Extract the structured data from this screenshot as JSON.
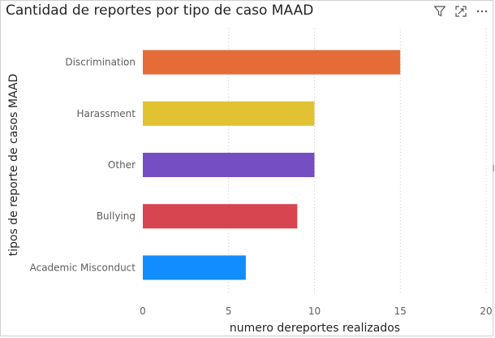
{
  "header": {
    "title": "Cantidad de reportes por tipo de caso MAAD",
    "icons": [
      "filter-icon",
      "focus-mode-icon",
      "more-options-icon"
    ]
  },
  "colors": {
    "Discrimination": "#E66C37",
    "Harassment": "#E1C233",
    "Other": "#744EC2",
    "Bullying": "#D64550",
    "Academic Misconduct": "#118DFF",
    "gridline": "#c8c8c8",
    "tick_text": "#605E5C",
    "axis_title": "#252423"
  },
  "chart_data": {
    "type": "bar",
    "orientation": "horizontal",
    "title": "Cantidad de reportes por tipo de caso MAAD",
    "xlabel": "numero dereportes realizados",
    "ylabel": "tipos de reporte de casos MAAD",
    "categories": [
      "Discrimination",
      "Harassment",
      "Other",
      "Bullying",
      "Academic Misconduct"
    ],
    "values": [
      15,
      10,
      10,
      9,
      6
    ],
    "xlim": [
      0,
      20
    ],
    "xticks": [
      "0",
      "5",
      "10",
      "15",
      "20"
    ],
    "grid": "vertical-dotted",
    "legend": "none"
  }
}
